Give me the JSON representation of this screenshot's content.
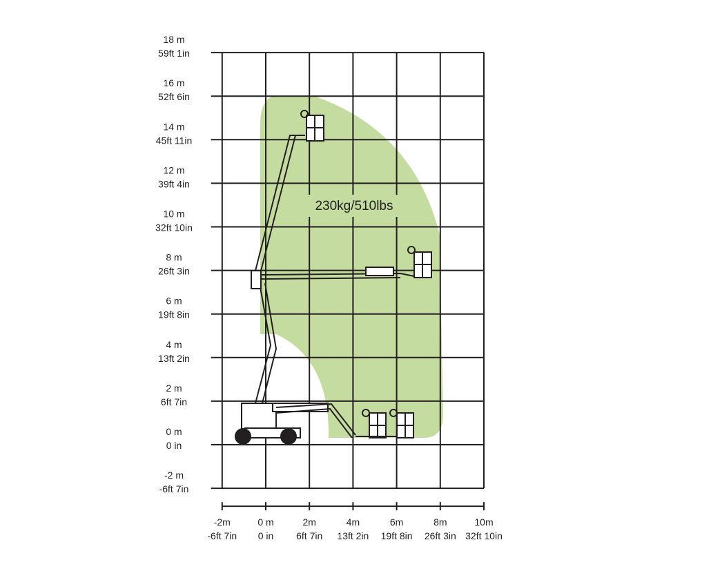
{
  "diagram": {
    "type": "working-range",
    "load_label": "230kg/510lbs",
    "envelope_color": "#c5dca0",
    "grid_color": "#231f20",
    "y_axis_labels": [
      {
        "m": "18 m",
        "imp": "59ft 1in",
        "value": 18
      },
      {
        "m": "16 m",
        "imp": "52ft 6in",
        "value": 16
      },
      {
        "m": "14 m",
        "imp": "45ft 11in",
        "value": 14
      },
      {
        "m": "12 m",
        "imp": "39ft 4in",
        "value": 12
      },
      {
        "m": "10 m",
        "imp": "32ft 10in",
        "value": 10
      },
      {
        "m": "8 m",
        "imp": "26ft 3in",
        "value": 8
      },
      {
        "m": "6 m",
        "imp": "19ft 8in",
        "value": 6
      },
      {
        "m": "4 m",
        "imp": "13ft 2in",
        "value": 4
      },
      {
        "m": "2 m",
        "imp": "6ft 7in",
        "value": 2
      },
      {
        "m": "0 m",
        "imp": "0 in",
        "value": 0
      },
      {
        "m": "-2 m",
        "imp": "-6ft 7in",
        "value": -2
      }
    ],
    "x_axis_labels": [
      {
        "m": "-2m",
        "imp": "-6ft 7in",
        "value": -2
      },
      {
        "m": "0 m",
        "imp": "0 in",
        "value": 0
      },
      {
        "m": "2m",
        "imp": "6ft 7in",
        "value": 2
      },
      {
        "m": "4m",
        "imp": "13ft 2in",
        "value": 4
      },
      {
        "m": "6m",
        "imp": "19ft 8in",
        "value": 6
      },
      {
        "m": "8m",
        "imp": "26ft 3in",
        "value": 8
      },
      {
        "m": "10m",
        "imp": "32ft 10in",
        "value": 10
      }
    ]
  }
}
